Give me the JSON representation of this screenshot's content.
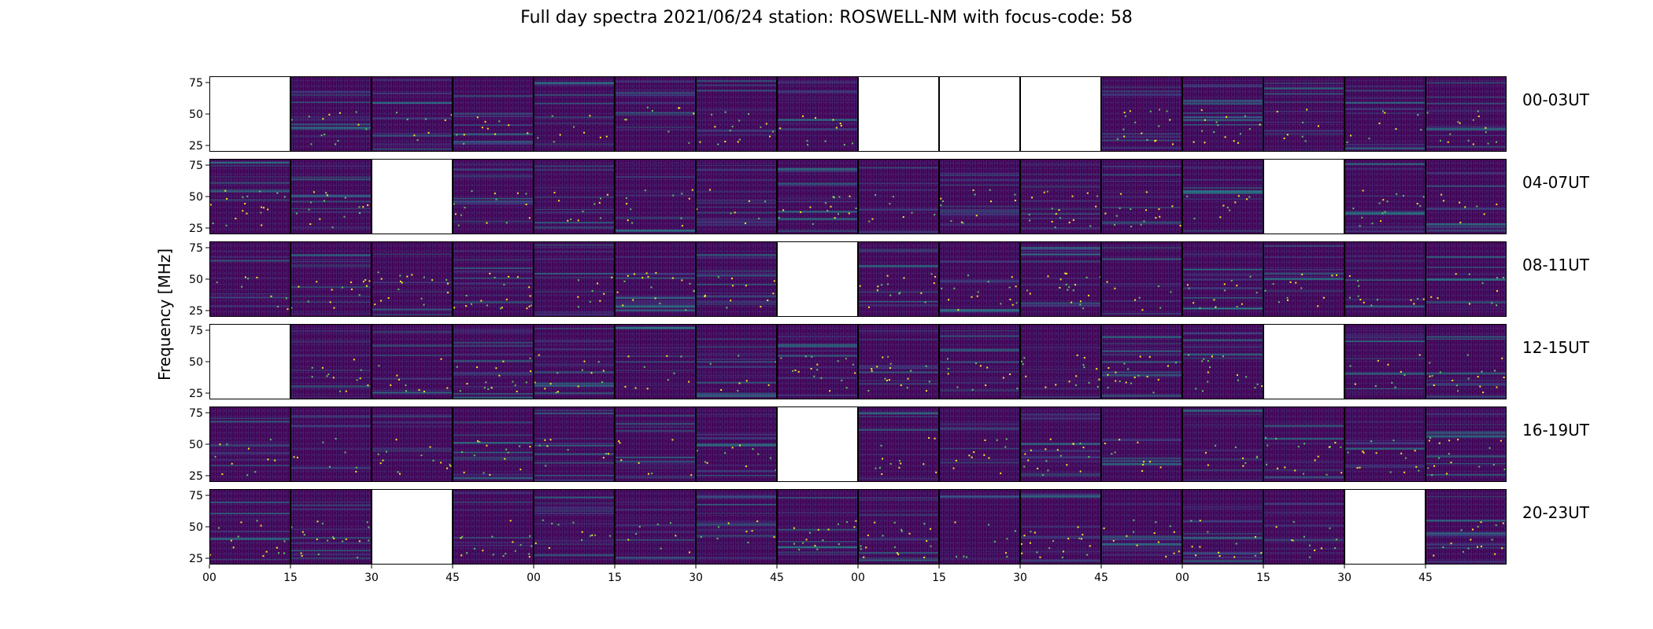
{
  "chart_data": {
    "type": "heatmap",
    "title": "Full day spectra 2021/06/24 station: ROSWELL-NM with focus-code: 58",
    "ylabel": "Frequency [MHz]",
    "ylim": [
      20,
      80
    ],
    "y_ticks": [
      25,
      50,
      75
    ],
    "x_tick_labels": [
      "00",
      "15",
      "30",
      "45",
      "00",
      "15",
      "30",
      "45",
      "00",
      "15",
      "30",
      "45",
      "00",
      "15",
      "30",
      "45"
    ],
    "colormap": [
      "#440154",
      "#3b528b",
      "#21918c",
      "#5ec962",
      "#fde725"
    ],
    "rows": [
      {
        "label": "00-03UT",
        "missing": [
          0,
          8,
          9,
          10
        ]
      },
      {
        "label": "04-07UT",
        "missing": [
          2,
          13
        ]
      },
      {
        "label": "08-11UT",
        "missing": [
          7
        ]
      },
      {
        "label": "12-15UT",
        "missing": [
          0,
          13
        ]
      },
      {
        "label": "16-19UT",
        "missing": [
          7
        ]
      },
      {
        "label": "20-23UT",
        "missing": [
          2,
          14
        ]
      }
    ]
  }
}
